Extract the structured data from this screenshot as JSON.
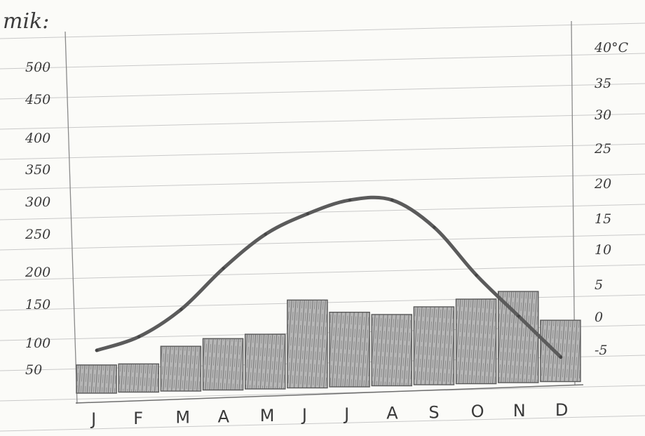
{
  "header": {
    "title_fragment": "mik:"
  },
  "chart_data": {
    "type": "bar",
    "categories": [
      "J",
      "F",
      "M",
      "A",
      "M",
      "J",
      "J",
      "A",
      "S",
      "O",
      "N",
      "D"
    ],
    "series": [
      {
        "type": "bar",
        "axis": "left",
        "values": [
          50,
          50,
          75,
          85,
          90,
          140,
          120,
          115,
          125,
          135,
          145,
          100
        ]
      },
      {
        "type": "line",
        "axis": "right",
        "values": [
          -5,
          -3,
          1,
          7,
          12,
          15,
          17,
          17,
          13,
          6,
          0,
          -6
        ]
      }
    ],
    "y_left": {
      "ticks": [
        "500",
        "450",
        "400",
        "350",
        "300",
        "250",
        "200",
        "150",
        "100",
        "50"
      ],
      "ylim": [
        0,
        500
      ]
    },
    "y_right": {
      "ticks": [
        "40°C",
        "35",
        "30",
        "25",
        "20",
        "15",
        "10",
        "5",
        "0",
        "-5"
      ],
      "ylim": [
        -5,
        40
      ]
    },
    "colors": {
      "bars": "#9a9a9a",
      "line": "#5b5b5b",
      "ruling": "#c9c9c9"
    }
  }
}
